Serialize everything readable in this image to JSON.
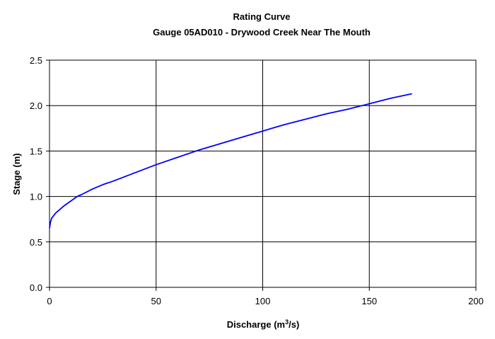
{
  "chart_data": {
    "type": "line",
    "title": "Rating Curve",
    "subtitle": "Gauge 05AD010 - Drywood Creek Near The Mouth",
    "xlabel_prefix": "Discharge (m",
    "xlabel_sup": "3",
    "xlabel_suffix": "/s)",
    "ylabel": "Stage (m)",
    "xlim": [
      0,
      200
    ],
    "ylim": [
      0,
      2.5
    ],
    "x_ticks": [
      0,
      50,
      100,
      150,
      200
    ],
    "y_ticks": [
      0.0,
      0.5,
      1.0,
      1.5,
      2.0,
      2.5
    ],
    "x_tick_labels": [
      "0",
      "50",
      "100",
      "150",
      "200"
    ],
    "y_tick_labels": [
      "0.0",
      "0.5",
      "1.0",
      "1.5",
      "2.0",
      "2.5"
    ],
    "grid": true,
    "legend": false,
    "series": [
      {
        "color": "#0000ff",
        "x": [
          0,
          0.5,
          1,
          2,
          3,
          5,
          7,
          10,
          13,
          15,
          20,
          25,
          30,
          40,
          50,
          60,
          70,
          80,
          90,
          100,
          110,
          120,
          130,
          140,
          150,
          155,
          160,
          170
        ],
        "y": [
          0.65,
          0.72,
          0.76,
          0.79,
          0.82,
          0.86,
          0.9,
          0.95,
          1.0,
          1.02,
          1.08,
          1.13,
          1.17,
          1.26,
          1.35,
          1.43,
          1.51,
          1.58,
          1.65,
          1.72,
          1.79,
          1.85,
          1.91,
          1.96,
          2.02,
          2.05,
          2.08,
          2.13
        ]
      }
    ]
  }
}
